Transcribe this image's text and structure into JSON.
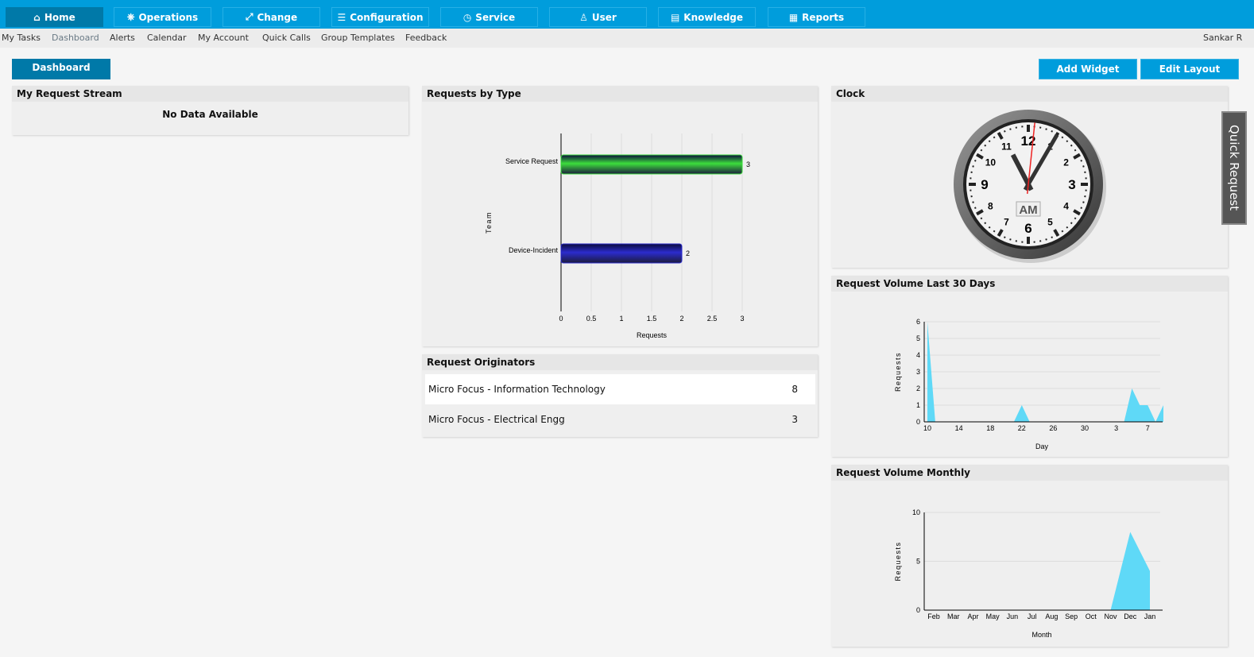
{
  "nav": {
    "tabs": [
      {
        "label": "Home",
        "icon": "home-icon",
        "active": true
      },
      {
        "label": "Operations",
        "icon": "wheel-icon"
      },
      {
        "label": "Change",
        "icon": "change-icon"
      },
      {
        "label": "Configuration",
        "icon": "sliders-icon"
      },
      {
        "label": "Service",
        "icon": "clock-icon"
      },
      {
        "label": "User",
        "icon": "user-icon"
      },
      {
        "label": "Knowledge",
        "icon": "book-icon"
      },
      {
        "label": "Reports",
        "icon": "report-icon"
      }
    ],
    "sub": [
      "My Tasks",
      "Dashboard",
      "Alerts",
      "Calendar",
      "My Account",
      "Quick Calls",
      "Group Templates",
      "Feedback"
    ],
    "user": "Sankar R"
  },
  "toolbar": {
    "dashboard": "Dashboard",
    "add_widget": "Add Widget",
    "edit_layout": "Edit Layout"
  },
  "quick_request": "Quick Request",
  "stream": {
    "title": "My Request Stream",
    "empty": "No Data Available"
  },
  "originators": {
    "title": "Request Originators",
    "rows": [
      {
        "name": "Micro Focus - Information Technology",
        "count": "8"
      },
      {
        "name": "Micro Focus - Electrical Engg",
        "count": "3"
      }
    ]
  },
  "clock": {
    "title": "Clock",
    "meridiem": "AM",
    "time": "11:05:01",
    "numbers": [
      "12",
      "1",
      "2",
      "3",
      "4",
      "5",
      "6",
      "7",
      "8",
      "9",
      "10",
      "11"
    ]
  },
  "chart_data": [
    {
      "type": "bar",
      "title": "Requests by Type",
      "orientation": "horizontal",
      "categories": [
        "Service Request",
        "Device-Incident"
      ],
      "values": [
        3,
        2
      ],
      "colors": [
        "#33dd33",
        "#2222cc"
      ],
      "xlabel": "Requests",
      "ylabel": "Team",
      "xlim": [
        0,
        3
      ],
      "ticks": [
        "0",
        "0.5",
        "1",
        "1.5",
        "2",
        "2.5",
        "3"
      ],
      "grid": true
    },
    {
      "type": "area",
      "title": "Request Volume Last 30 Days",
      "xlabel": "Day",
      "ylabel": "Requests",
      "ylim": [
        0,
        6
      ],
      "yticks": [
        "0",
        "1",
        "2",
        "3",
        "4",
        "5",
        "6"
      ],
      "xticks": [
        "10",
        "14",
        "18",
        "22",
        "26",
        "30",
        "3",
        "7"
      ],
      "values": [
        6,
        0,
        0,
        0,
        0,
        0,
        0,
        0,
        0,
        0,
        0,
        0,
        1,
        0,
        0,
        0,
        0,
        0,
        0,
        0,
        0,
        0,
        0,
        0,
        0,
        0,
        2,
        1,
        1,
        0,
        1
      ],
      "color": "#5fd9f7",
      "grid": true
    },
    {
      "type": "area",
      "title": "Request Volume Monthly",
      "xlabel": "Month",
      "ylabel": "Requests",
      "ylim": [
        0,
        10
      ],
      "yticks": [
        "0",
        "5",
        "10"
      ],
      "categories": [
        "Feb",
        "Mar",
        "Apr",
        "May",
        "Jun",
        "Jul",
        "Aug",
        "Sep",
        "Oct",
        "Nov",
        "Dec",
        "Jan"
      ],
      "values": [
        0,
        0,
        0,
        0,
        0,
        0,
        0,
        0,
        0,
        0,
        8,
        4
      ],
      "color": "#5fd9f7",
      "grid": true
    }
  ]
}
